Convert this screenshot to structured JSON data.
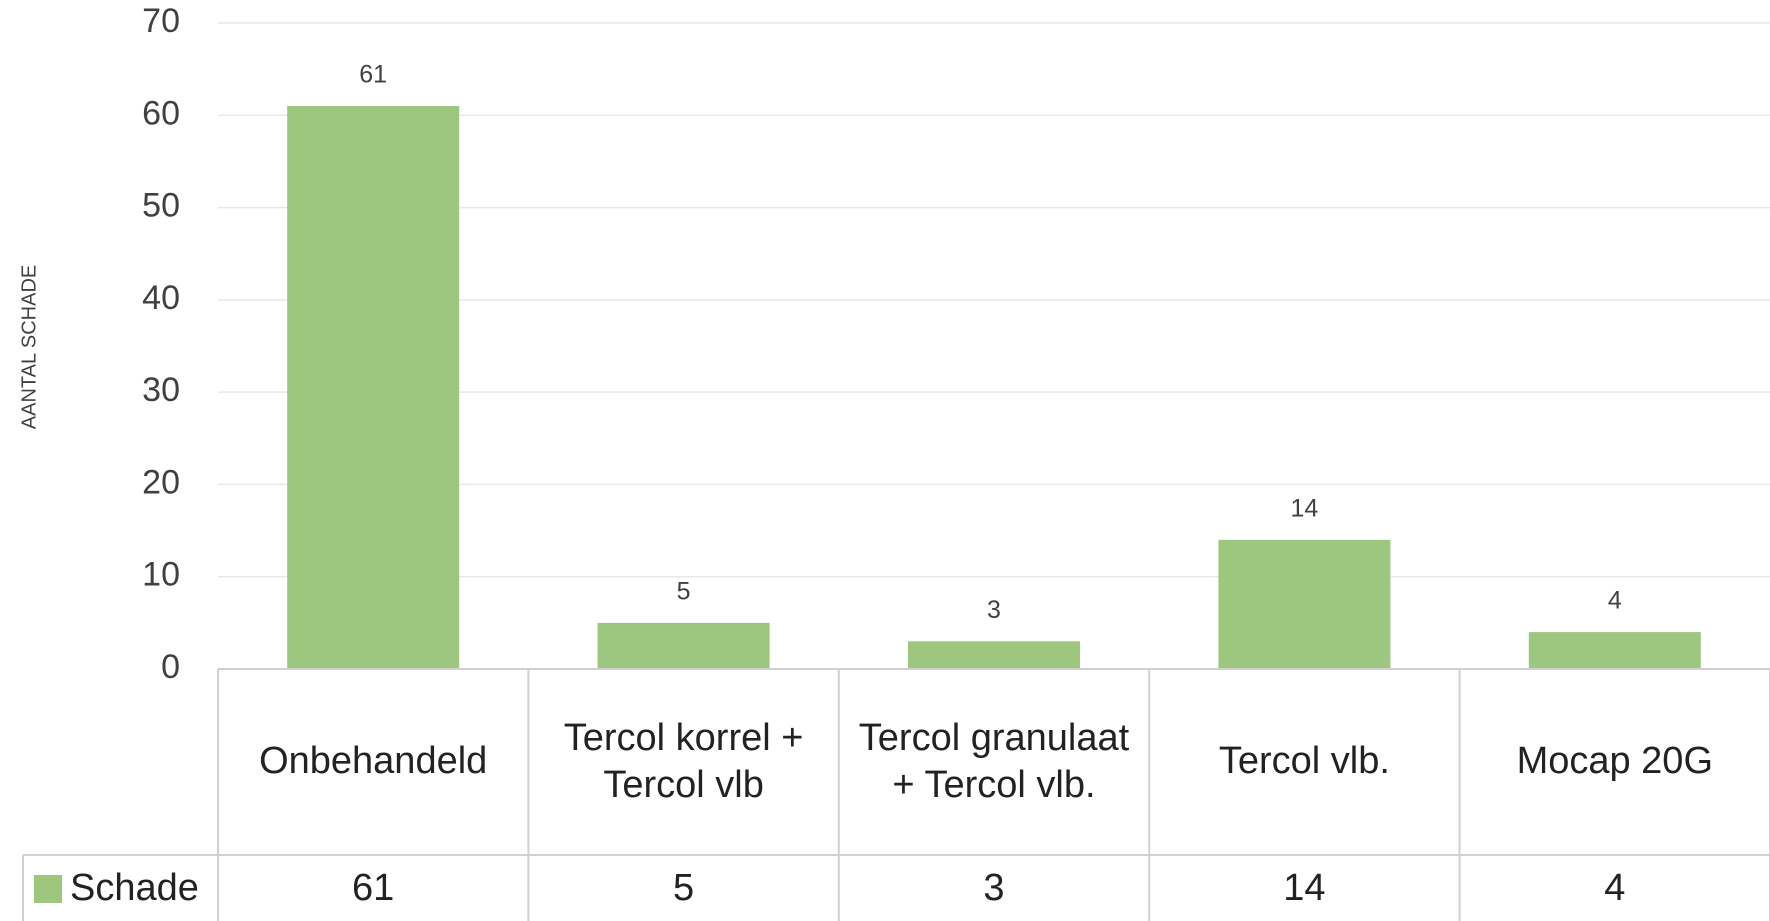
{
  "chart_data": {
    "type": "bar",
    "y_label": "AANTAL SCHADE",
    "categories": [
      "Onbehandeld",
      "Tercol korrel + Tercol vlb",
      "Tercol granulaat + Tercol vlb.",
      "Tercol vlb.",
      "Mocap 20G"
    ],
    "series": [
      {
        "name": "Schade",
        "color": "#9dc67f",
        "values": [
          61,
          5,
          3,
          14,
          4
        ]
      }
    ],
    "ylim": [
      0,
      70
    ],
    "yticks": [
      0,
      10,
      20,
      30,
      40,
      50,
      60,
      70
    ],
    "grid": true,
    "data_table": true
  }
}
